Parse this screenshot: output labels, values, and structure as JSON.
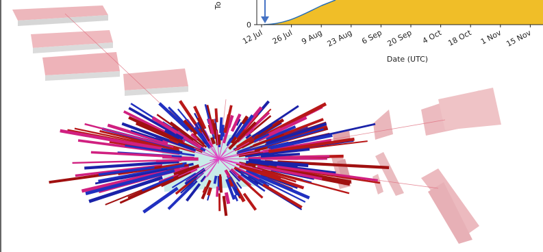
{
  "chart_data": {
    "type": "area",
    "y_label": "To",
    "x_label": "Date (UTC)",
    "categories": [
      "12 Jul",
      "26 Jul",
      "9 Aug",
      "23 Aug",
      "6 Sep",
      "20 Sep",
      "4 Oct",
      "18 Oct",
      "1 Nov",
      "15 Nov"
    ],
    "yticks": [
      0
    ],
    "color": "#f0be28",
    "edge_color": "#2a6fb5"
  }
}
